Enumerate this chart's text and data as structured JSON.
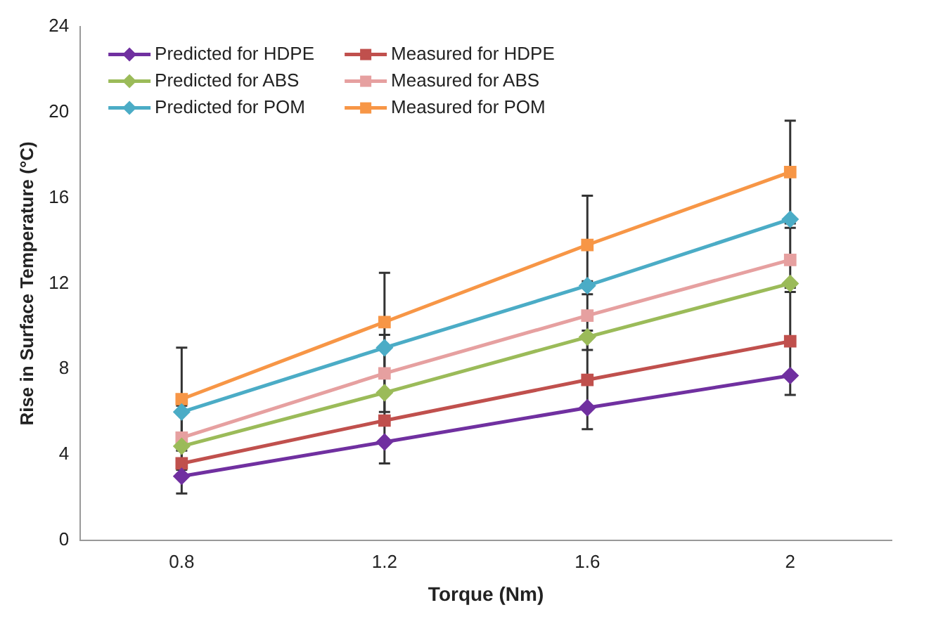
{
  "chart_data": {
    "type": "line",
    "xlabel": "Torque (Nm)",
    "ylabel": "Rise in Surface Temperature (°C)",
    "categories": [
      "0.8",
      "1.2",
      "1.6",
      "2"
    ],
    "ylim": [
      0,
      24
    ],
    "yticks": [
      0,
      4,
      8,
      12,
      16,
      20,
      24
    ],
    "grid": false,
    "legend": "top left",
    "line_style": "solid",
    "series": [
      {
        "name": "Predicted for HDPE",
        "color": "#7030a0",
        "marker": "diamond",
        "values": [
          3.0,
          4.6,
          6.2,
          7.7
        ]
      },
      {
        "name": "Measured for HDPE",
        "color": "#c0504d",
        "marker": "square",
        "values": [
          3.6,
          5.6,
          7.5,
          9.3
        ],
        "errors": [
          1.4,
          2.0,
          2.3,
          2.5
        ]
      },
      {
        "name": "Predicted for ABS",
        "color": "#9bbb59",
        "marker": "diamond",
        "values": [
          4.4,
          6.9,
          9.5,
          12.0
        ]
      },
      {
        "name": "Measured for ABS",
        "color": "#e6a0a0",
        "marker": "square",
        "values": [
          4.8,
          7.8,
          10.5,
          13.1
        ],
        "errors": [
          1.5,
          1.8,
          1.6,
          1.5
        ]
      },
      {
        "name": "Predicted for POM",
        "color": "#4bacc6",
        "marker": "diamond",
        "values": [
          6.0,
          9.0,
          11.9,
          15.0
        ]
      },
      {
        "name": "Measured for POM",
        "color": "#f79646",
        "marker": "square",
        "values": [
          6.6,
          10.2,
          13.8,
          17.2
        ],
        "errors": [
          2.4,
          2.3,
          2.3,
          2.4
        ]
      }
    ]
  }
}
